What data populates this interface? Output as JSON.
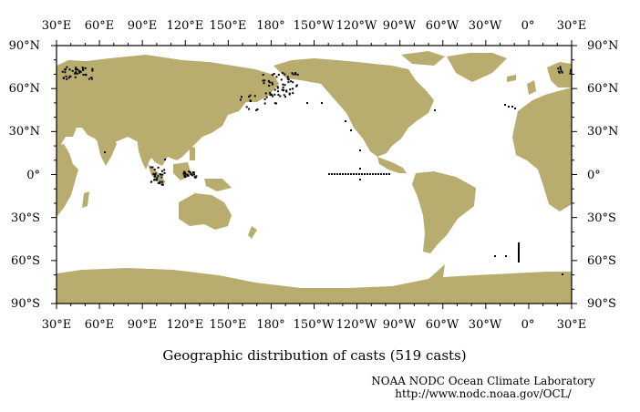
{
  "map": {
    "top_labels": [
      "30°E",
      "60°E",
      "90°E",
      "120°E",
      "150°E",
      "180°",
      "150°W",
      "120°W",
      "90°W",
      "60°W",
      "30°W",
      "0°",
      "30°E"
    ],
    "bottom_labels": [
      "30°E",
      "60°E",
      "90°E",
      "120°E",
      "150°E",
      "180°",
      "150°W",
      "120°W",
      "90°W",
      "60°W",
      "30°W",
      "0°",
      "30°E"
    ],
    "left_labels": [
      "90°N",
      "60°N",
      "30°N",
      "0°",
      "30°S",
      "60°S",
      "90°S"
    ],
    "right_labels": [
      "90°N",
      "60°N",
      "30°N",
      "0°",
      "30°S",
      "60°S",
      "90°S"
    ],
    "land_color": "#b8ad6e",
    "ocean_color": "#ffffff",
    "cast_color": "#000000"
  },
  "caption": "Geographic distribution of casts (519 casts)",
  "credit_line1": "NOAA NODC Ocean Climate Laboratory",
  "credit_line2": "http://www.nodc.noaa.gov/OCL/"
}
